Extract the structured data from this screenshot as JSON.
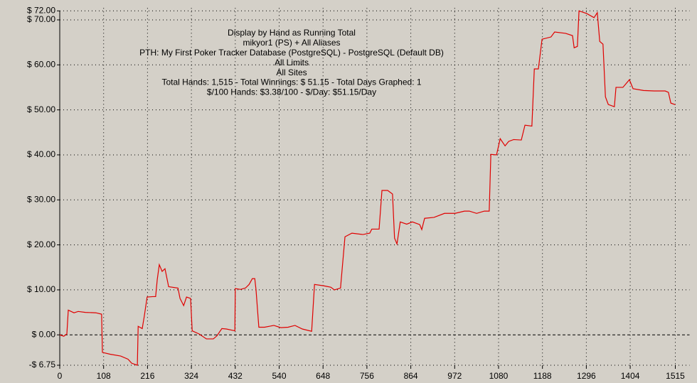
{
  "chart_data": {
    "type": "line",
    "title_lines": [
      "Display by Hand as Running Total",
      "mikyor1 (PS) + All Aliases",
      "PTH: My First Poker Tracker Database (PostgreSQL) - PostgreSQL (Default DB)",
      "All Limits",
      "All Sites",
      "Total Hands: 1,515 - Total Winnings: $ 51.15 - Total Days Graphed: 1",
      "$/100 Hands: $3.38/100 - $/Day: $51.15/Day"
    ],
    "x": [
      0,
      10,
      17.5,
      21,
      28,
      35,
      45.5,
      63,
      89,
      103,
      105,
      124,
      150,
      168,
      177,
      191,
      193,
      203,
      208,
      215,
      229,
      236,
      240,
      245,
      252,
      259,
      268,
      291,
      296,
      305,
      312,
      322,
      326,
      343,
      361,
      378,
      387,
      399,
      410,
      431,
      432,
      445,
      457,
      466,
      474,
      480,
      483,
      490,
      504,
      527,
      544,
      562,
      579,
      597,
      620,
      627,
      650,
      667,
      676,
      691,
      702,
      719,
      746,
      763,
      768,
      786,
      793,
      807,
      819,
      824,
      830,
      838,
      854,
      868,
      886,
      891,
      898,
      921,
      947,
      973,
      996,
      1008,
      1026,
      1045,
      1057,
      1061,
      1075,
      1084,
      1096,
      1105,
      1117,
      1136,
      1145,
      1162,
      1168,
      1178,
      1187,
      1209,
      1218,
      1245,
      1262,
      1266,
      1274,
      1278,
      1297,
      1315,
      1323,
      1329,
      1337,
      1343,
      1350,
      1365,
      1369,
      1386,
      1402,
      1411,
      1437,
      1463,
      1490,
      1498,
      1504,
      1515
    ],
    "values": [
      0,
      -0.3,
      0.2,
      5.5,
      5.2,
      4.9,
      5.2,
      5.0,
      4.9,
      4.6,
      -3.9,
      -4.3,
      -4.7,
      -5.4,
      -6.3,
      -6.75,
      1.9,
      1.4,
      4.1,
      8.4,
      8.5,
      8.5,
      12.3,
      15.6,
      14.1,
      14.7,
      10.7,
      10.4,
      8.1,
      6.5,
      8.4,
      8.1,
      0.9,
      0.2,
      -0.9,
      -0.9,
      -0.2,
      1.4,
      1.3,
      0.9,
      10.3,
      10.1,
      10.4,
      11.2,
      12.5,
      12.5,
      10.1,
      1.7,
      1.7,
      2.1,
      1.6,
      1.7,
      2.1,
      1.3,
      0.8,
      11.2,
      10.9,
      10.6,
      10.0,
      10.4,
      21.8,
      22.6,
      22.3,
      22.6,
      23.5,
      23.5,
      32.1,
      32.1,
      31.3,
      21.5,
      20.2,
      25.1,
      24.6,
      25.1,
      24.5,
      23.4,
      25.9,
      26.1,
      27.0,
      27.0,
      27.5,
      27.5,
      27.0,
      27.5,
      27.5,
      40.1,
      40.0,
      43.6,
      42.0,
      43.0,
      43.4,
      43.3,
      46.6,
      46.4,
      59.1,
      59.1,
      65.7,
      66.2,
      67.3,
      67.0,
      66.5,
      63.8,
      64.1,
      72.0,
      71.4,
      70.5,
      71.6,
      65.2,
      64.6,
      52.9,
      51.2,
      50.7,
      55.0,
      55.0,
      56.7,
      54.7,
      54.3,
      54.2,
      54.2,
      53.9,
      51.5,
      51.15
    ],
    "color": "#e00000",
    "xlim": [
      0,
      1515
    ],
    "xticks": [
      0,
      108,
      216,
      324,
      432,
      540,
      648,
      756,
      864,
      972,
      1080,
      1188,
      1296,
      1404,
      1515
    ],
    "ylim": [
      -6.75,
      72
    ],
    "yticks": [
      {
        "value": -6.75,
        "label": "-$ 6.75"
      },
      {
        "value": 0,
        "label": "$ 0.00"
      },
      {
        "value": 10,
        "label": "$ 10.00"
      },
      {
        "value": 20,
        "label": "$ 20.00"
      },
      {
        "value": 30,
        "label": "$ 30.00"
      },
      {
        "value": 40,
        "label": "$ 40.00"
      },
      {
        "value": 50,
        "label": "$ 50.00"
      },
      {
        "value": 60,
        "label": "$ 60.00"
      },
      {
        "value": 70,
        "label": "$ 70.00"
      },
      {
        "value": 72,
        "label": "$ 72.00"
      }
    ],
    "grid": true
  }
}
